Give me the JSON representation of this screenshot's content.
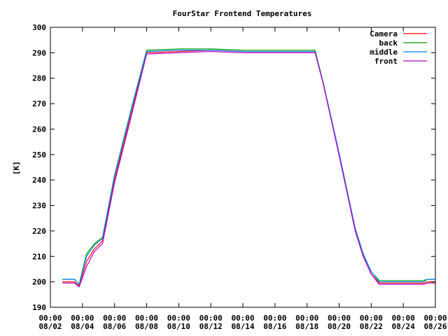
{
  "chart_data": {
    "type": "line",
    "title": "FourStar Frontend Temperatures",
    "ylabel": "[K]",
    "xlabel": "",
    "ylim": [
      190,
      300
    ],
    "yticks": [
      190,
      200,
      210,
      220,
      230,
      240,
      250,
      260,
      270,
      280,
      290,
      300
    ],
    "xlim": [
      "2024-08-02",
      "2024-08-26"
    ],
    "xticks": [
      {
        "date": "2024-08-02",
        "time": "00:00",
        "day": "08/02"
      },
      {
        "date": "2024-08-04",
        "time": "00:00",
        "day": "08/04"
      },
      {
        "date": "2024-08-06",
        "time": "00:00",
        "day": "08/06"
      },
      {
        "date": "2024-08-08",
        "time": "00:00",
        "day": "08/08"
      },
      {
        "date": "2024-08-10",
        "time": "00:00",
        "day": "08/10"
      },
      {
        "date": "2024-08-12",
        "time": "00:00",
        "day": "08/12"
      },
      {
        "date": "2024-08-14",
        "time": "00:00",
        "day": "08/14"
      },
      {
        "date": "2024-08-16",
        "time": "00:00",
        "day": "08/16"
      },
      {
        "date": "2024-08-18",
        "time": "00:00",
        "day": "08/18"
      },
      {
        "date": "2024-08-20",
        "time": "00:00",
        "day": "08/20"
      },
      {
        "date": "2024-08-22",
        "time": "00:00",
        "day": "08/22"
      },
      {
        "date": "2024-08-24",
        "time": "00:00",
        "day": "08/24"
      },
      {
        "date": "2024-08-26",
        "time": "00:00",
        "day": "08/26"
      }
    ],
    "grid": false,
    "legend_position": "top-right",
    "series": [
      {
        "name": "Camera",
        "color": "#ff0000",
        "points": [
          [
            "2024-08-02 18:00",
            200
          ],
          [
            "2024-08-03 12:00",
            200
          ],
          [
            "2024-08-03 19:00",
            198.5
          ],
          [
            "2024-08-04 06:00",
            208
          ],
          [
            "2024-08-04 18:00",
            213
          ],
          [
            "2024-08-05 06:00",
            216
          ],
          [
            "2024-08-06 00:00",
            240
          ],
          [
            "2024-08-07 00:00",
            265
          ],
          [
            "2024-08-08 00:00",
            290
          ],
          [
            "2024-08-10 00:00",
            290.5
          ],
          [
            "2024-08-12 00:00",
            291
          ],
          [
            "2024-08-14 00:00",
            290.5
          ],
          [
            "2024-08-16 00:00",
            290.5
          ],
          [
            "2024-08-18 00:00",
            290.5
          ],
          [
            "2024-08-18 12:00",
            290.5
          ],
          [
            "2024-08-19 00:00",
            278
          ],
          [
            "2024-08-20 00:00",
            250
          ],
          [
            "2024-08-21 00:00",
            220
          ],
          [
            "2024-08-21 12:00",
            210
          ],
          [
            "2024-08-22 00:00",
            203
          ],
          [
            "2024-08-22 12:00",
            199.5
          ],
          [
            "2024-08-25 06:00",
            199.5
          ],
          [
            "2024-08-25 12:00",
            200
          ],
          [
            "2024-08-26 00:00",
            200
          ]
        ]
      },
      {
        "name": "back",
        "color": "#00a000",
        "points": [
          [
            "2024-08-02 18:00",
            201
          ],
          [
            "2024-08-03 12:00",
            201
          ],
          [
            "2024-08-03 19:00",
            199
          ],
          [
            "2024-08-04 06:00",
            211
          ],
          [
            "2024-08-04 18:00",
            215
          ],
          [
            "2024-08-05 06:00",
            217.5
          ],
          [
            "2024-08-06 00:00",
            242
          ],
          [
            "2024-08-07 00:00",
            267
          ],
          [
            "2024-08-08 00:00",
            291
          ],
          [
            "2024-08-10 00:00",
            291.5
          ],
          [
            "2024-08-12 00:00",
            291.5
          ],
          [
            "2024-08-14 00:00",
            291
          ],
          [
            "2024-08-16 00:00",
            291
          ],
          [
            "2024-08-18 00:00",
            291
          ],
          [
            "2024-08-18 12:00",
            291
          ],
          [
            "2024-08-19 00:00",
            278.5
          ],
          [
            "2024-08-20 00:00",
            250.5
          ],
          [
            "2024-08-21 00:00",
            221
          ],
          [
            "2024-08-21 12:00",
            211
          ],
          [
            "2024-08-22 00:00",
            204
          ],
          [
            "2024-08-22 12:00",
            200.5
          ],
          [
            "2024-08-25 06:00",
            200.5
          ],
          [
            "2024-08-25 12:00",
            201
          ],
          [
            "2024-08-26 00:00",
            201
          ]
        ]
      },
      {
        "name": "middle",
        "color": "#0080ff",
        "points": [
          [
            "2024-08-02 18:00",
            201
          ],
          [
            "2024-08-03 12:00",
            201
          ],
          [
            "2024-08-03 19:00",
            199
          ],
          [
            "2024-08-04 06:00",
            210
          ],
          [
            "2024-08-04 18:00",
            214.5
          ],
          [
            "2024-08-05 06:00",
            217
          ],
          [
            "2024-08-06 00:00",
            241.5
          ],
          [
            "2024-08-07 00:00",
            266.5
          ],
          [
            "2024-08-08 00:00",
            290.5
          ],
          [
            "2024-08-10 00:00",
            291
          ],
          [
            "2024-08-12 00:00",
            291
          ],
          [
            "2024-08-14 00:00",
            290.5
          ],
          [
            "2024-08-16 00:00",
            290.5
          ],
          [
            "2024-08-18 00:00",
            290.5
          ],
          [
            "2024-08-18 12:00",
            290.5
          ],
          [
            "2024-08-19 00:00",
            278.5
          ],
          [
            "2024-08-20 00:00",
            250.5
          ],
          [
            "2024-08-21 00:00",
            221
          ],
          [
            "2024-08-21 12:00",
            211
          ],
          [
            "2024-08-22 00:00",
            204
          ],
          [
            "2024-08-22 12:00",
            200
          ],
          [
            "2024-08-25 06:00",
            200
          ],
          [
            "2024-08-25 12:00",
            201
          ],
          [
            "2024-08-26 00:00",
            201
          ]
        ]
      },
      {
        "name": "front",
        "color": "#c000c0",
        "points": [
          [
            "2024-08-02 18:00",
            199.5
          ],
          [
            "2024-08-03 12:00",
            199.5
          ],
          [
            "2024-08-03 19:00",
            198
          ],
          [
            "2024-08-04 06:00",
            206
          ],
          [
            "2024-08-04 18:00",
            212
          ],
          [
            "2024-08-05 06:00",
            215
          ],
          [
            "2024-08-06 00:00",
            239
          ],
          [
            "2024-08-07 00:00",
            264
          ],
          [
            "2024-08-08 00:00",
            289.5
          ],
          [
            "2024-08-10 00:00",
            290
          ],
          [
            "2024-08-12 00:00",
            290.5
          ],
          [
            "2024-08-14 00:00",
            290
          ],
          [
            "2024-08-16 00:00",
            290
          ],
          [
            "2024-08-18 00:00",
            290
          ],
          [
            "2024-08-18 12:00",
            290
          ],
          [
            "2024-08-19 00:00",
            278
          ],
          [
            "2024-08-20 00:00",
            249.5
          ],
          [
            "2024-08-21 00:00",
            220
          ],
          [
            "2024-08-21 12:00",
            210
          ],
          [
            "2024-08-22 00:00",
            203
          ],
          [
            "2024-08-22 12:00",
            199
          ],
          [
            "2024-08-25 06:00",
            199
          ],
          [
            "2024-08-25 12:00",
            199.5
          ],
          [
            "2024-08-26 00:00",
            199.5
          ]
        ]
      }
    ]
  }
}
